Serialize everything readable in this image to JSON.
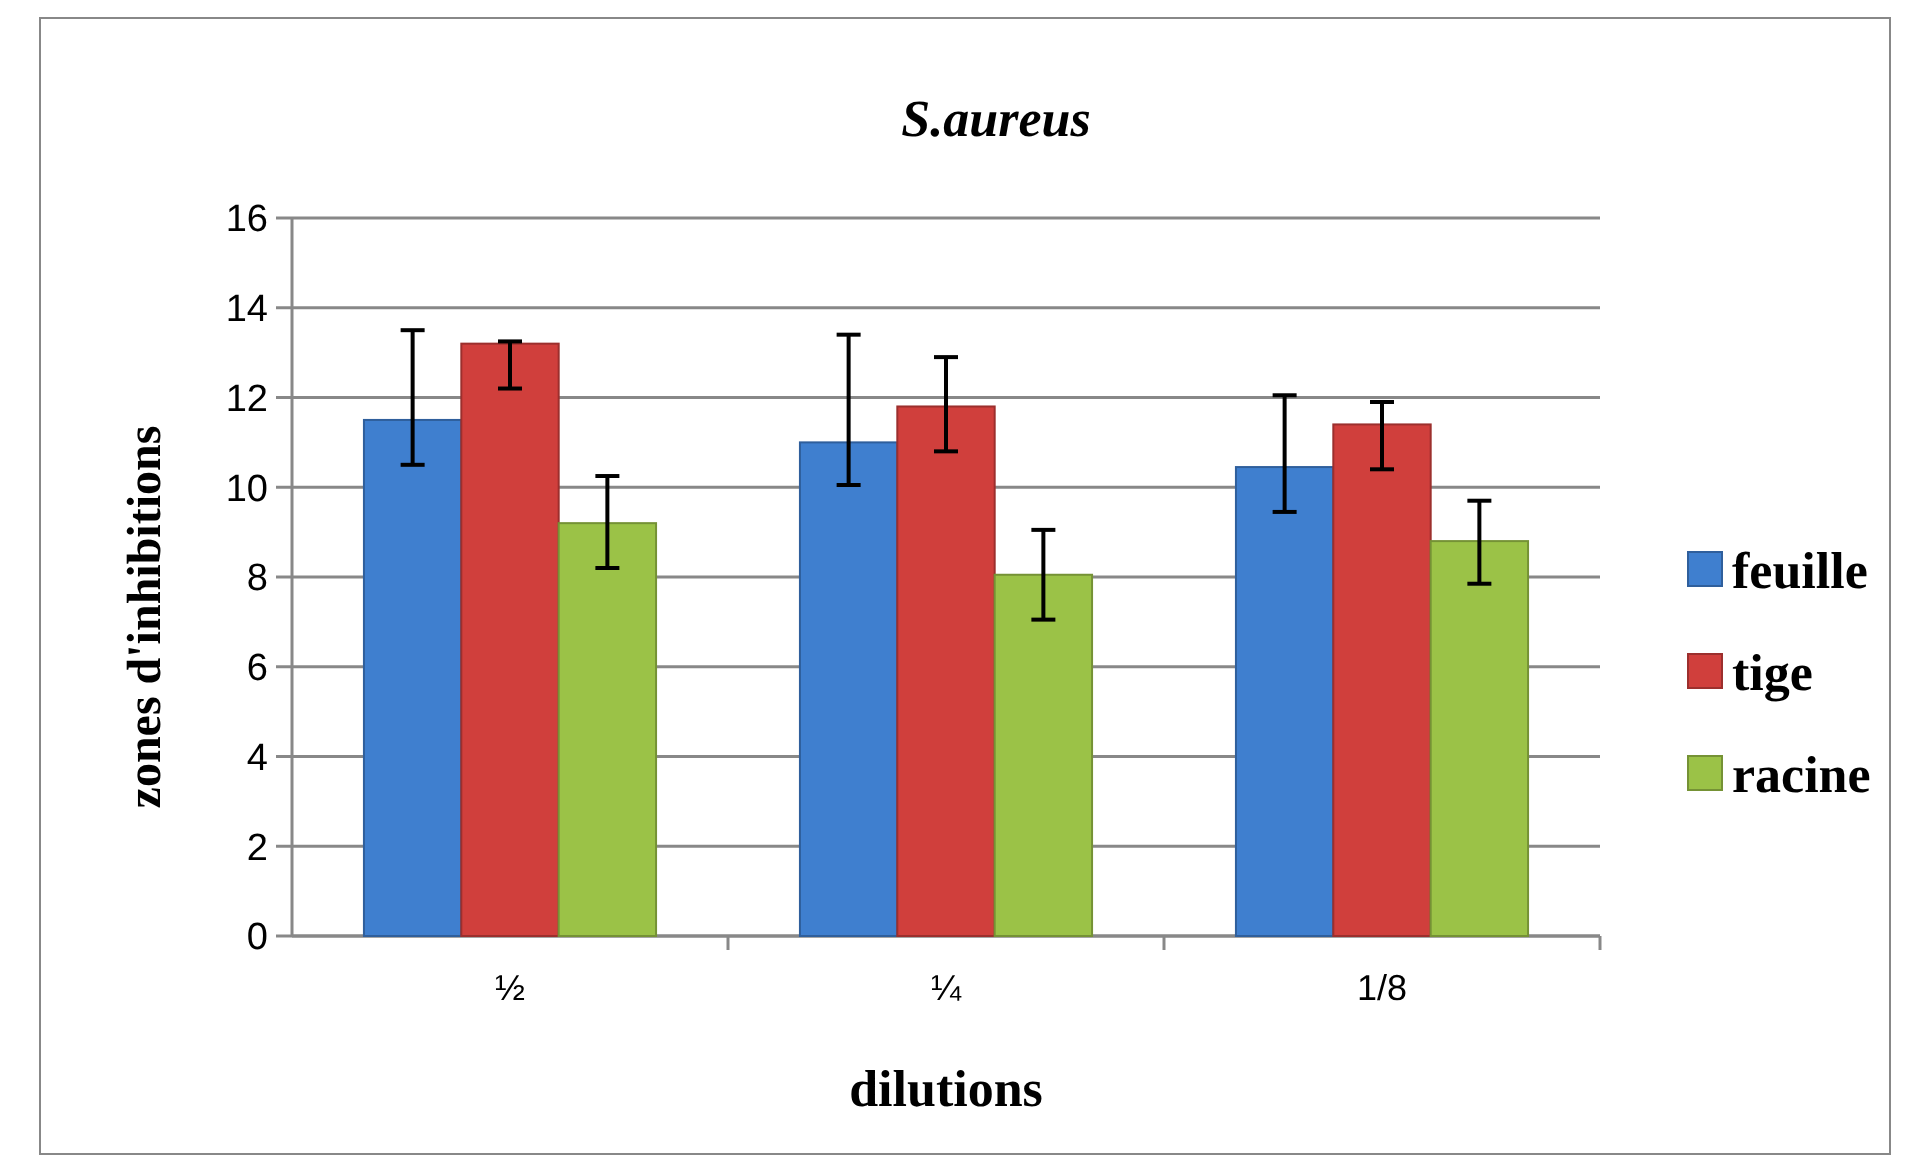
{
  "chart_data": {
    "type": "bar",
    "title": "S.aureus",
    "xlabel": "dilutions",
    "ylabel": "zones d'inhibitions",
    "categories": [
      "½",
      "¼",
      "1/8"
    ],
    "series": [
      {
        "name": "feuille",
        "color": "#3f7fcf",
        "values": [
          11.5,
          11.0,
          10.45
        ],
        "errors": [
          [
            10.5,
            13.5
          ],
          [
            10.05,
            13.4
          ],
          [
            9.45,
            12.05
          ]
        ]
      },
      {
        "name": "tige",
        "color": "#d03f3c",
        "values": [
          13.2,
          11.8,
          11.4
        ],
        "errors": [
          [
            12.2,
            13.25
          ],
          [
            10.8,
            12.9
          ],
          [
            10.4,
            11.9
          ]
        ]
      },
      {
        "name": "racine",
        "color": "#9bc247",
        "values": [
          9.2,
          8.05,
          8.8
        ],
        "errors": [
          [
            8.2,
            10.25
          ],
          [
            7.05,
            9.05
          ],
          [
            7.85,
            9.7
          ]
        ]
      }
    ],
    "ylim": [
      0,
      16
    ],
    "yticks": [
      0,
      2,
      4,
      6,
      8,
      10,
      12,
      14,
      16
    ],
    "grid": "y",
    "legend": "right"
  }
}
